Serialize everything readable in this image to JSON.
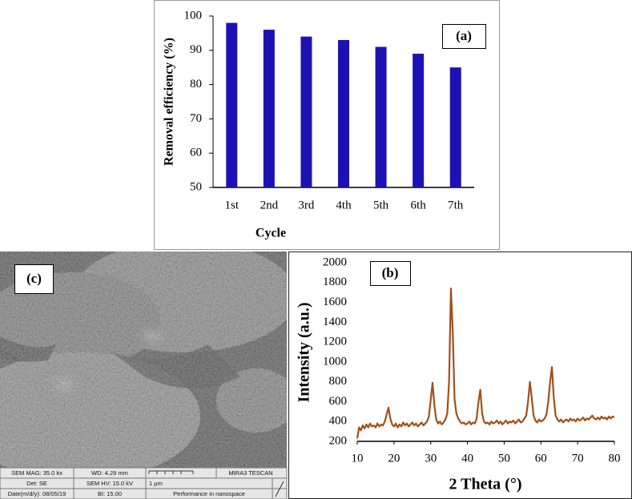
{
  "chart_data": [
    {
      "type": "bar",
      "categories": [
        "1st",
        "2nd",
        "3rd",
        "4th",
        "5th",
        "6th",
        "7th"
      ],
      "values": [
        98,
        96,
        94,
        93,
        91,
        89,
        85
      ],
      "color": "#1c12b4",
      "ylim": [
        50,
        100
      ],
      "yticks": [
        50,
        60,
        70,
        80,
        90,
        100
      ],
      "grid": false,
      "y_label": "Removal efficiency (%)",
      "x_label": "Cycle",
      "annotation": "(a)"
    },
    {
      "type": "line",
      "color": "#a1501c",
      "x": [
        10,
        10.5,
        11,
        11.5,
        12,
        12.5,
        13,
        13.5,
        14,
        14.5,
        15,
        15.5,
        16,
        16.5,
        17,
        17.5,
        18,
        18.5,
        19,
        19.5,
        20,
        20.5,
        21,
        21.5,
        22,
        22.5,
        23,
        23.5,
        24,
        24.5,
        25,
        25.5,
        26,
        26.5,
        27,
        27.5,
        28,
        28.5,
        29,
        29.5,
        30,
        30.5,
        31,
        31.5,
        32,
        32.5,
        33,
        33.5,
        34,
        34.5,
        35,
        35.5,
        36,
        36.5,
        37,
        37.5,
        38,
        38.5,
        39,
        39.5,
        40,
        40.5,
        41,
        41.5,
        42,
        42.5,
        43,
        43.5,
        44,
        44.5,
        45,
        45.5,
        46,
        46.5,
        47,
        47.5,
        48,
        48.5,
        49,
        49.5,
        50,
        50.5,
        51,
        51.5,
        52,
        52.5,
        53,
        53.5,
        54,
        54.5,
        55,
        55.5,
        56,
        56.5,
        57,
        57.5,
        58,
        58.5,
        59,
        59.5,
        60,
        60.5,
        61,
        61.5,
        62,
        62.5,
        63,
        63.5,
        64,
        64.5,
        65,
        65.5,
        66,
        66.5,
        67,
        67.5,
        68,
        68.5,
        69,
        69.5,
        70,
        70.5,
        71,
        71.5,
        72,
        72.5,
        73,
        73.5,
        74,
        74.5,
        75,
        75.5,
        76,
        76.5,
        77,
        77.5,
        78,
        78.5,
        79,
        79.5,
        80
      ],
      "values": [
        230,
        340,
        310,
        360,
        330,
        370,
        340,
        380,
        350,
        360,
        340,
        380,
        350,
        370,
        360,
        400,
        470,
        540,
        430,
        370,
        350,
        380,
        340,
        370,
        350,
        390,
        360,
        380,
        350,
        370,
        390,
        360,
        380,
        350,
        370,
        390,
        360,
        380,
        400,
        450,
        620,
        790,
        560,
        420,
        380,
        400,
        370,
        390,
        420,
        480,
        800,
        1740,
        1300,
        620,
        480,
        430,
        400,
        380,
        390,
        370,
        380,
        400,
        370,
        390,
        380,
        430,
        600,
        720,
        480,
        400,
        380,
        390,
        370,
        400,
        380,
        390,
        410,
        380,
        400,
        370,
        390,
        410,
        380,
        400,
        390,
        410,
        380,
        400,
        420,
        390,
        400,
        430,
        460,
        600,
        800,
        640,
        460,
        410,
        390,
        420,
        400,
        410,
        430,
        470,
        600,
        800,
        950,
        640,
        460,
        420,
        400,
        420,
        390,
        410,
        420,
        400,
        430,
        410,
        420,
        400,
        430,
        410,
        420,
        440,
        410,
        430,
        420,
        440,
        460,
        430,
        420,
        440,
        420,
        450,
        430,
        440,
        420,
        450,
        430,
        450,
        440
      ],
      "xlim": [
        10,
        80
      ],
      "xticks": [
        10,
        20,
        30,
        40,
        50,
        60,
        70,
        80
      ],
      "ylim": [
        200,
        2000
      ],
      "yticks": [
        200,
        400,
        600,
        800,
        1000,
        1200,
        1400,
        1600,
        1800,
        2000
      ],
      "grid": false,
      "y_label": "Intensity (a.u.)",
      "x_label": "2 Theta (°)",
      "annotation": "(b)"
    }
  ],
  "sem_image": {
    "label": "(c)",
    "info_bar": [
      "SEM MAG: 35.0 kx",
      "WD: 4.29 mm",
      "MIRA3 TESCAN",
      "Det: SE",
      "SEM HV: 15.0 kV",
      "1 μm",
      "Date(m/d/y): 08/05/19",
      "BI: 15.00",
      "Performance in nanospace"
    ]
  }
}
